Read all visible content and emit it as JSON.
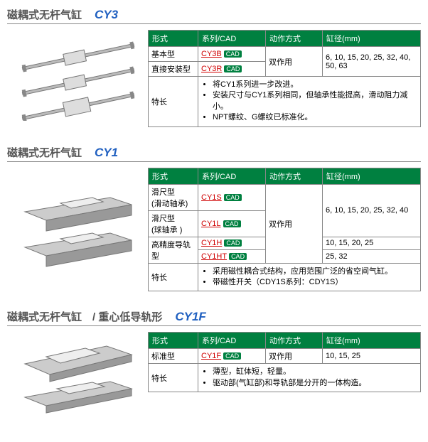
{
  "sections": [
    {
      "title_cn": "磁耦式无杆气缸",
      "title_model": "CY3",
      "headers": [
        "形式",
        "系列/CAD",
        "动作方式",
        "缸径(mm)"
      ],
      "col_widths": [
        "70px",
        "95px",
        "80px",
        "auto"
      ],
      "rows": [
        {
          "form": "基本型",
          "series": "CY3B",
          "action": "双作用",
          "bore": "6, 10, 15, 20, 25, 32, 40, 50, 63",
          "action_rowspan": 2,
          "bore_rowspan": 2
        },
        {
          "form": "直接安装型",
          "series": "CY3R"
        }
      ],
      "feature_label": "特长",
      "features": [
        "将CY1系列进一步改进。",
        "安装尺寸与CY1系列相同，但轴承性能提高，滑动阻力减小。",
        "NPT螺纹、G螺纹已标准化。"
      ]
    },
    {
      "title_cn": "磁耦式无杆气缸",
      "title_model": "CY1",
      "headers": [
        "形式",
        "系列/CAD",
        "动作方式",
        "缸径(mm)"
      ],
      "col_widths": [
        "70px",
        "95px",
        "80px",
        "auto"
      ],
      "rows": [
        {
          "form": "滑尺型\n(滑动轴承)",
          "series": "CY1S",
          "action": "双作用",
          "bore": "6, 10, 15, 20, 25, 32, 40",
          "action_rowspan": 4,
          "bore_rowspan": 2
        },
        {
          "form": "滑尺型\n(球轴承 )",
          "series": "CY1L"
        },
        {
          "form": "高精度导轨型",
          "series": "CY1H",
          "bore": "10, 15, 20, 25",
          "form_rowspan": 2
        },
        {
          "series": "CY1HT",
          "bore": "25, 32"
        }
      ],
      "feature_label": "特长",
      "features": [
        "采用磁性耦合式结构，应用范围广泛的省空间气缸。",
        "带磁性开关（CDY1S系列：CDY1S）"
      ]
    },
    {
      "title_cn": "磁耦式无杆气缸　/ 重心低导轨形",
      "title_model": "CY1F",
      "headers": [
        "形式",
        "系列/CAD",
        "动作方式",
        "缸径(mm)"
      ],
      "col_widths": [
        "70px",
        "95px",
        "80px",
        "auto"
      ],
      "rows": [
        {
          "form": "标准型",
          "series": "CY1F",
          "action": "双作用",
          "bore": "10, 15, 25"
        }
      ],
      "feature_label": "特长",
      "features": [
        "薄型，缸体短，轻量。",
        "驱动部(气缸部)和导轨部是分开的一体构造。"
      ]
    }
  ],
  "cad_label": "CAD"
}
